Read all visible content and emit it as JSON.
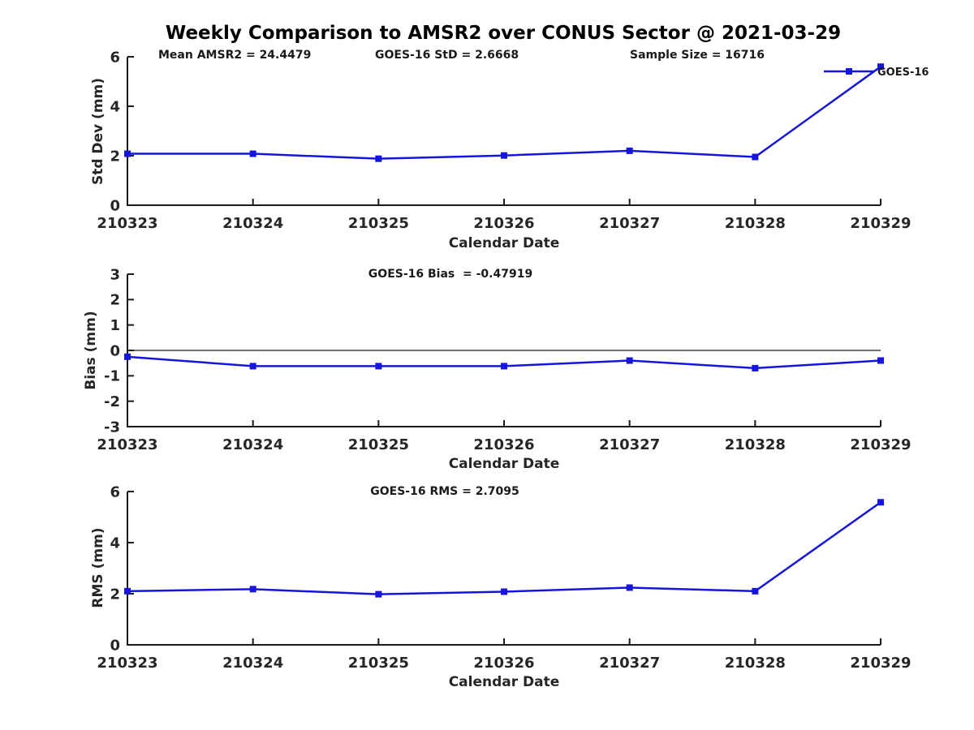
{
  "title": "Weekly Comparison to AMSR2 over CONUS Sector @ 2021-03-29",
  "legend": {
    "label": "GOES-16"
  },
  "colors": {
    "series": "#1515dd",
    "axis": "#1a1a1a",
    "tick_text": "#262626",
    "zero_line": "#1a1a1a",
    "background": "#ffffff"
  },
  "chart_data": [
    {
      "type": "line",
      "name": "std-dev",
      "annotations": [
        "Mean AMSR2 = 24.4479",
        "GOES-16 StD = 2.6668",
        "Sample Size = 16716"
      ],
      "categories": [
        "210323",
        "210324",
        "210325",
        "210326",
        "210327",
        "210328",
        "210329"
      ],
      "series": [
        {
          "name": "GOES-16",
          "values": [
            2.08,
            2.08,
            1.88,
            2.01,
            2.2,
            1.95,
            5.6
          ]
        }
      ],
      "xlabel": "Calendar Date",
      "ylabel": "Std Dev (mm)",
      "ylim": [
        0,
        6
      ],
      "yticks": [
        0,
        2,
        4,
        6
      ],
      "grid": false,
      "legend_position": "top-right",
      "marker": "square"
    },
    {
      "type": "line",
      "name": "bias",
      "annotations": [
        "GOES-16 Bias  = -0.47919"
      ],
      "categories": [
        "210323",
        "210324",
        "210325",
        "210326",
        "210327",
        "210328",
        "210329"
      ],
      "series": [
        {
          "name": "GOES-16",
          "values": [
            -0.25,
            -0.62,
            -0.62,
            -0.62,
            -0.4,
            -0.7,
            -0.4
          ]
        }
      ],
      "xlabel": "Calendar Date",
      "ylabel": "Bias (mm)",
      "ylim": [
        -3,
        3
      ],
      "yticks": [
        -3,
        -2,
        -1,
        0,
        1,
        2,
        3
      ],
      "zero_line": true,
      "grid": false,
      "marker": "square"
    },
    {
      "type": "line",
      "name": "rms",
      "annotations": [
        "GOES-16 RMS = 2.7095"
      ],
      "categories": [
        "210323",
        "210324",
        "210325",
        "210326",
        "210327",
        "210328",
        "210329"
      ],
      "series": [
        {
          "name": "GOES-16",
          "values": [
            2.1,
            2.18,
            1.98,
            2.08,
            2.24,
            2.1,
            5.58
          ]
        }
      ],
      "xlabel": "Calendar Date",
      "ylabel": "RMS (mm)",
      "ylim": [
        0,
        6
      ],
      "yticks": [
        0,
        2,
        4,
        6
      ],
      "grid": false,
      "marker": "square"
    }
  ]
}
